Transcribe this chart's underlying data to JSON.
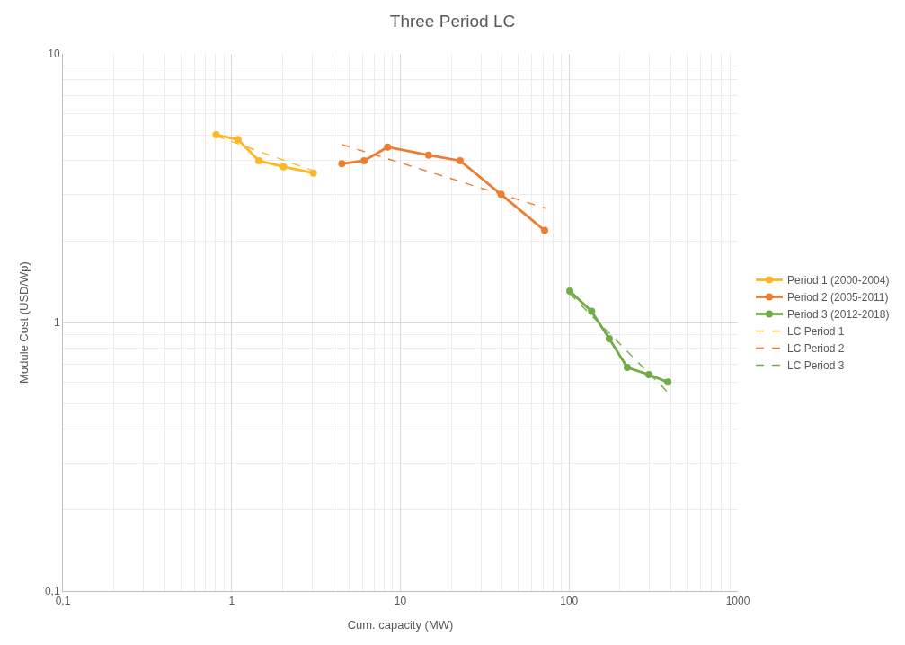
{
  "chart_data": {
    "type": "line",
    "title": "Three Period LC",
    "xlabel": "Cum. capacity (MW)",
    "ylabel": "Module Cost (USD/Wp)",
    "log": "xy",
    "xlim": [
      0.1,
      1000
    ],
    "xticks": [
      {
        "value": 0.1,
        "label": "0,1"
      },
      1,
      10,
      100,
      1000
    ],
    "ylim": [
      0.1,
      10
    ],
    "yticks": [
      {
        "value": 0.1,
        "label": "0,1"
      },
      1,
      10
    ],
    "grid": true,
    "legend": "right",
    "series": [
      {
        "name": "Period 1 (2000-2004)",
        "color": "#fbb829",
        "marker": "circle",
        "line_style": "solid",
        "x": [
          0.81,
          1.09,
          1.45,
          2.03,
          3.05
        ],
        "values": [
          5.0,
          4.8,
          4.0,
          3.8,
          3.6
        ]
      },
      {
        "name": "Period 2 (2005-2011)",
        "color": "#ed7d31",
        "marker": "circle",
        "line_style": "solid",
        "x": [
          4.5,
          6.1,
          8.4,
          14.7,
          22.6,
          39.5,
          71.6
        ],
        "values": [
          3.9,
          4.0,
          4.5,
          4.2,
          4.0,
          3.0,
          2.2
        ]
      },
      {
        "name": "Period 3 (2012-2018)",
        "color": "#70ad47",
        "marker": "circle",
        "line_style": "solid",
        "x": [
          101,
          136,
          173,
          221,
          297,
          385
        ],
        "values": [
          1.31,
          1.1,
          0.87,
          0.68,
          0.64,
          0.6
        ]
      },
      {
        "name": "LC Period 1",
        "color": "#fbb829",
        "marker": "none",
        "line_style": "dashed",
        "x": [
          0.81,
          3.05
        ],
        "values": [
          4.95,
          3.67
        ]
      },
      {
        "name": "LC Period 2",
        "color": "#ed7d31",
        "marker": "none",
        "line_style": "dashed",
        "x": [
          4.5,
          73
        ],
        "values": [
          4.6,
          2.66
        ]
      },
      {
        "name": "LC Period 3",
        "color": "#70ad47",
        "marker": "none",
        "line_style": "dashed",
        "x": [
          101,
          385
        ],
        "values": [
          1.28,
          0.55
        ]
      }
    ]
  }
}
